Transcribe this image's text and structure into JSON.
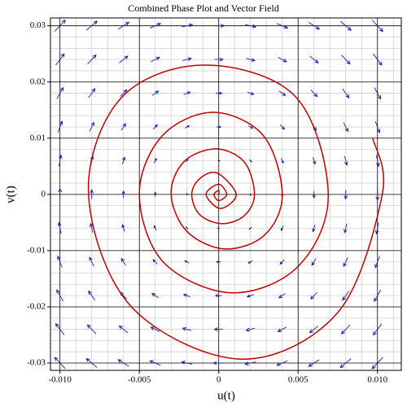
{
  "chart_data": {
    "type": "line",
    "title": "Combined Phase Plot and Vector Field",
    "xlabel": "u(t)",
    "ylabel": "v(t)",
    "color": "#c00000",
    "x": [
      0.0097,
      0.0103,
      0.0075,
      0.0014,
      -0.0055,
      -0.0082,
      -0.0062,
      -0.001,
      0.0048,
      0.0069,
      0.005,
      0.0008,
      -0.0035,
      -0.005,
      -0.0036,
      -0.0004,
      0.0028,
      0.004,
      0.0029,
      0.0004,
      -0.002,
      -0.003,
      -0.0022,
      -0.0002,
      0.0016,
      0.00225,
      0.0016,
      0.0002,
      -0.0012,
      -0.0017,
      -0.0012,
      -0.0001,
      0.0011,
      0.0001,
      -0.0008,
      0,
      0.0005,
      0,
      -0.0003,
      0,
      0
    ],
    "y": [
      0.01,
      0,
      -0.021,
      -0.0293,
      -0.02,
      0,
      0.017,
      0.023,
      0.0175,
      0,
      -0.0128,
      -0.0175,
      -0.012,
      0,
      0.0103,
      0.0146,
      0.0105,
      0,
      -0.0072,
      -0.0097,
      -0.0066,
      0,
      0.0058,
      0.0081,
      0.0058,
      0,
      -0.0038,
      -0.0052,
      -0.0036,
      0,
      0.0028,
      0.0038,
      0,
      -0.0025,
      0,
      0.0018,
      0,
      -0.0011,
      0,
      0.0007,
      0
    ],
    "xlim": [
      -0.0106,
      0.0115
    ],
    "ylim": [
      -0.0313,
      0.0314
    ],
    "xticks": [
      {
        "value": -0.01,
        "label": "-0.010"
      },
      -0.005,
      0,
      0.005,
      {
        "value": 0.01,
        "label": "0.010"
      }
    ],
    "yticks": [
      -0.03,
      -0.02,
      -0.01,
      0,
      0.01,
      0.02,
      0.03
    ],
    "x_minor_ticks": [
      -0.009,
      -0.008,
      -0.007,
      -0.006,
      -0.004,
      -0.003,
      -0.002,
      -0.001,
      0.001,
      0.002,
      0.003,
      0.004,
      0.006,
      0.007,
      0.008,
      0.009,
      0.011
    ],
    "y_minor_ticks": [
      -0.028,
      -0.026,
      -0.024,
      -0.022,
      -0.018,
      -0.016,
      -0.014,
      -0.012,
      -0.008,
      -0.006,
      -0.004,
      -0.002,
      0.002,
      0.004,
      0.006,
      0.008,
      0.012,
      0.014,
      0.016,
      0.018,
      0.022,
      0.024,
      0.026,
      0.028
    ],
    "grid": true,
    "field": {
      "color": "#1c1ca8",
      "x": [
        -0.01,
        -0.008,
        -0.006,
        -0.004,
        -0.002,
        0,
        0.002,
        0.004,
        0.006,
        0.008,
        0.01
      ],
      "y": [
        0.03,
        0.024,
        0.018,
        0.012,
        0.006,
        0,
        -0.006,
        -0.012,
        -0.018,
        -0.024,
        -0.03
      ],
      "du": [
        [
          0.03,
          0.03,
          0.03,
          0.03,
          0.03,
          0.03,
          0.03,
          0.03,
          0.03,
          0.03,
          0.03
        ],
        [
          0.024,
          0.024,
          0.024,
          0.024,
          0.024,
          0.024,
          0.024,
          0.024,
          0.024,
          0.024,
          0.024
        ],
        [
          0.018,
          0.018,
          0.018,
          0.018,
          0.018,
          0.018,
          0.018,
          0.018,
          0.018,
          0.018,
          0.018
        ],
        [
          0.012,
          0.012,
          0.012,
          0.012,
          0.012,
          0.012,
          0.012,
          0.012,
          0.012,
          0.012,
          0.012
        ],
        [
          0.006,
          0.006,
          0.006,
          0.006,
          0.006,
          0.006,
          0.006,
          0.006,
          0.006,
          0.006,
          0.006
        ],
        [
          0,
          0,
          0,
          0,
          0,
          0,
          0,
          0,
          0,
          0,
          0
        ],
        [
          -0.006,
          -0.006,
          -0.006,
          -0.006,
          -0.006,
          -0.006,
          -0.006,
          -0.006,
          -0.006,
          -0.006,
          -0.006
        ],
        [
          -0.012,
          -0.012,
          -0.012,
          -0.012,
          -0.012,
          -0.012,
          -0.012,
          -0.012,
          -0.012,
          -0.012,
          -0.012
        ],
        [
          -0.018,
          -0.018,
          -0.018,
          -0.018,
          -0.018,
          -0.018,
          -0.018,
          -0.018,
          -0.018,
          -0.018,
          -0.018
        ],
        [
          -0.024,
          -0.024,
          -0.024,
          -0.024,
          -0.024,
          -0.024,
          -0.024,
          -0.024,
          -0.024,
          -0.024,
          -0.024
        ],
        [
          -0.03,
          -0.03,
          -0.03,
          -0.03,
          -0.03,
          -0.03,
          -0.03,
          -0.03,
          -0.03,
          -0.03,
          -0.03
        ]
      ],
      "dv": [
        [
          0.09,
          0.072,
          0.054,
          0.036,
          0.018,
          0,
          -0.018,
          -0.036,
          -0.054,
          -0.072,
          -0.09
        ],
        [
          0.09,
          0.072,
          0.054,
          0.036,
          0.018,
          0,
          -0.018,
          -0.036,
          -0.054,
          -0.072,
          -0.09
        ],
        [
          0.09,
          0.072,
          0.054,
          0.036,
          0.018,
          0,
          -0.018,
          -0.036,
          -0.054,
          -0.072,
          -0.09
        ],
        [
          0.09,
          0.072,
          0.054,
          0.036,
          0.018,
          0,
          -0.018,
          -0.036,
          -0.054,
          -0.072,
          -0.09
        ],
        [
          0.09,
          0.072,
          0.054,
          0.036,
          0.018,
          0,
          -0.018,
          -0.036,
          -0.054,
          -0.072,
          -0.09
        ],
        [
          0.09,
          0.072,
          0.054,
          0.036,
          0.018,
          0,
          -0.018,
          -0.036,
          -0.054,
          -0.072,
          -0.09
        ],
        [
          0.09,
          0.072,
          0.054,
          0.036,
          0.018,
          0,
          -0.018,
          -0.036,
          -0.054,
          -0.072,
          -0.09
        ],
        [
          0.09,
          0.072,
          0.054,
          0.036,
          0.018,
          0,
          -0.018,
          -0.036,
          -0.054,
          -0.072,
          -0.09
        ],
        [
          0.09,
          0.072,
          0.054,
          0.036,
          0.018,
          0,
          -0.018,
          -0.036,
          -0.054,
          -0.072,
          -0.09
        ],
        [
          0.09,
          0.072,
          0.054,
          0.036,
          0.018,
          0,
          -0.018,
          -0.036,
          -0.054,
          -0.072,
          -0.09
        ],
        [
          0.09,
          0.072,
          0.054,
          0.036,
          0.018,
          0,
          -0.018,
          -0.036,
          -0.054,
          -0.072,
          -0.09
        ]
      ]
    }
  }
}
